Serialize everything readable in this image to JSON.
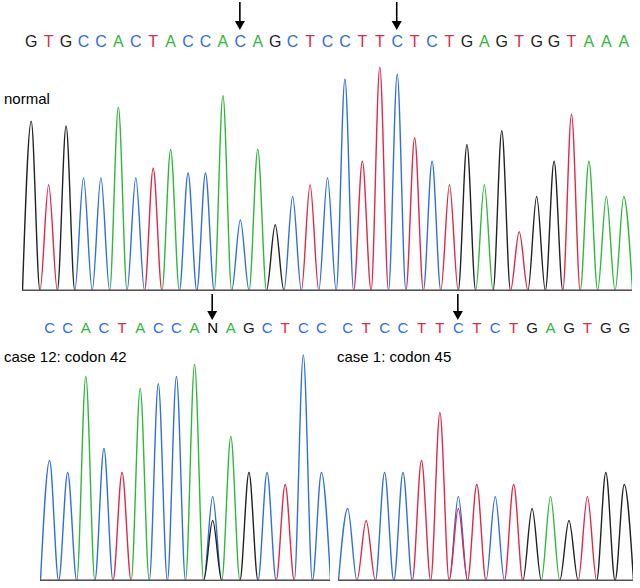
{
  "chart_data": [
    {
      "type": "line",
      "title": "normal",
      "sequence": "GTGCCACTACCACAGCTCCTTCTCTGAGTGGTAAA",
      "arrows": [
        12,
        21
      ],
      "x": [
        -0.5,
        0,
        0.5,
        1,
        1.5,
        2,
        2.5,
        3,
        3.5,
        4,
        4.5,
        5,
        5.5,
        6,
        6.5,
        7,
        7.5,
        8,
        8.5,
        9,
        9.5,
        10,
        10.5,
        11,
        11.5,
        12,
        12.5,
        13,
        13.5,
        14,
        14.5,
        15,
        15.5,
        16,
        16.5,
        17,
        17.5,
        18,
        18.5,
        19,
        19.5,
        20,
        20.5,
        21,
        21.5,
        22,
        22.5,
        23,
        23.5,
        24,
        24.5,
        25,
        25.5,
        26,
        26.5,
        27,
        27.5,
        28,
        28.5,
        29,
        29.5,
        30,
        30.5,
        31,
        31.5,
        32,
        32.5,
        33,
        33.5,
        34,
        34.5
      ],
      "xlim": [
        -0.5,
        34.5
      ],
      "ylim": [
        0,
        100
      ],
      "tick_labels": false,
      "series": [
        {
          "base": "A",
          "color": "#2fb83a",
          "values": [
            0,
            0,
            0,
            0,
            0,
            0,
            0,
            0,
            0,
            0,
            0,
            78,
            0,
            0,
            0,
            0,
            0,
            60,
            0,
            0,
            0,
            0,
            0,
            83,
            0,
            0,
            0,
            60,
            0,
            0,
            0,
            0,
            0,
            0,
            0,
            0,
            0,
            0,
            0,
            0,
            0,
            0,
            0,
            0,
            0,
            0,
            0,
            0,
            0,
            0,
            0,
            0,
            0,
            45,
            0,
            0,
            0,
            0,
            0,
            0,
            0,
            0,
            0,
            0,
            0,
            55,
            0,
            40,
            0,
            40,
            0
          ]
        },
        {
          "base": "C",
          "color": "#2f6fe0",
          "values": [
            0,
            0,
            0,
            0,
            0,
            0,
            0,
            48,
            0,
            48,
            0,
            0,
            0,
            48,
            0,
            0,
            0,
            0,
            0,
            50,
            0,
            50,
            0,
            0,
            0,
            30,
            0,
            0,
            0,
            0,
            0,
            40,
            0,
            0,
            0,
            48,
            0,
            90,
            0,
            0,
            0,
            0,
            0,
            92,
            0,
            0,
            0,
            55,
            0,
            0,
            0,
            0,
            0,
            0,
            0,
            0,
            0,
            0,
            0,
            0,
            0,
            0,
            0,
            0,
            0,
            0,
            0,
            0,
            0,
            0,
            0
          ]
        },
        {
          "base": "G",
          "color": "#222222",
          "values": [
            0,
            72,
            0,
            0,
            0,
            70,
            0,
            0,
            0,
            0,
            0,
            0,
            0,
            0,
            0,
            0,
            0,
            0,
            0,
            0,
            0,
            0,
            0,
            0,
            0,
            0,
            0,
            0,
            0,
            28,
            0,
            0,
            0,
            0,
            0,
            0,
            0,
            0,
            0,
            0,
            0,
            0,
            0,
            0,
            0,
            0,
            0,
            0,
            0,
            0,
            0,
            62,
            0,
            0,
            0,
            68,
            0,
            0,
            0,
            40,
            0,
            55,
            0,
            0,
            0,
            0,
            0,
            0,
            0,
            0,
            0
          ]
        },
        {
          "base": "T",
          "color": "#e02848",
          "values": [
            0,
            0,
            0,
            45,
            0,
            0,
            0,
            0,
            0,
            0,
            0,
            0,
            0,
            0,
            0,
            52,
            0,
            0,
            0,
            0,
            0,
            0,
            0,
            0,
            0,
            0,
            0,
            0,
            0,
            0,
            0,
            0,
            0,
            45,
            0,
            0,
            0,
            0,
            0,
            55,
            0,
            95,
            0,
            0,
            0,
            65,
            0,
            0,
            0,
            45,
            0,
            0,
            0,
            0,
            0,
            0,
            0,
            25,
            0,
            0,
            0,
            0,
            0,
            75,
            0,
            0,
            0,
            0,
            0,
            0,
            0
          ]
        }
      ]
    },
    {
      "type": "line",
      "title": "case 12: codon 42",
      "sequence": "CCACTACCANAGCTCC",
      "arrows": [
        9
      ],
      "x": [
        -0.5,
        0,
        0.5,
        1,
        1.5,
        2,
        2.5,
        3,
        3.5,
        4,
        4.5,
        5,
        5.5,
        6,
        6.5,
        7,
        7.5,
        8,
        8.5,
        9,
        9.5,
        10,
        10.5,
        11,
        11.5,
        12,
        12.5,
        13,
        13.5,
        14,
        14.5,
        15,
        15.5
      ],
      "xlim": [
        -0.5,
        15.5
      ],
      "ylim": [
        0,
        100
      ],
      "tick_labels": false,
      "series": [
        {
          "base": "A",
          "color": "#2fb83a",
          "values": [
            0,
            0,
            0,
            0,
            0,
            85,
            0,
            0,
            0,
            0,
            0,
            80,
            0,
            0,
            0,
            0,
            0,
            90,
            0,
            0,
            0,
            60,
            0,
            0,
            0,
            0,
            0,
            0,
            0,
            0,
            0,
            0,
            0
          ]
        },
        {
          "base": "C",
          "color": "#2f6fe0",
          "values": [
            0,
            50,
            0,
            45,
            0,
            0,
            0,
            55,
            0,
            0,
            0,
            0,
            0,
            82,
            0,
            85,
            0,
            0,
            0,
            35,
            0,
            0,
            0,
            0,
            0,
            45,
            0,
            0,
            0,
            94,
            0,
            45,
            0
          ]
        },
        {
          "base": "G",
          "color": "#222222",
          "values": [
            0,
            0,
            0,
            0,
            0,
            0,
            0,
            0,
            0,
            0,
            0,
            0,
            0,
            0,
            0,
            0,
            0,
            0,
            0,
            25,
            0,
            0,
            0,
            45,
            0,
            0,
            0,
            0,
            0,
            0,
            0,
            0,
            0
          ]
        },
        {
          "base": "T",
          "color": "#e02848",
          "values": [
            0,
            0,
            0,
            0,
            0,
            0,
            0,
            0,
            0,
            45,
            0,
            0,
            0,
            0,
            0,
            0,
            0,
            0,
            0,
            0,
            0,
            0,
            0,
            0,
            0,
            0,
            0,
            40,
            0,
            0,
            0,
            0,
            0
          ]
        }
      ]
    },
    {
      "type": "line",
      "title": "case 1: codon 45",
      "sequence": "CTCCTTCTCTGAGTGG",
      "arrows": [
        6
      ],
      "x": [
        -0.5,
        0,
        0.5,
        1,
        1.5,
        2,
        2.5,
        3,
        3.5,
        4,
        4.5,
        5,
        5.5,
        6,
        6.5,
        7,
        7.5,
        8,
        8.5,
        9,
        9.5,
        10,
        10.5,
        11,
        11.5,
        12,
        12.5,
        13,
        13.5,
        14,
        14.5,
        15,
        15.5
      ],
      "xlim": [
        -0.5,
        15.5
      ],
      "ylim": [
        0,
        100
      ],
      "tick_labels": false,
      "series": [
        {
          "base": "A",
          "color": "#2fb83a",
          "values": [
            0,
            0,
            0,
            0,
            0,
            0,
            0,
            0,
            0,
            0,
            0,
            0,
            0,
            0,
            0,
            0,
            0,
            0,
            0,
            0,
            0,
            0,
            0,
            35,
            0,
            0,
            0,
            0,
            0,
            0,
            0,
            0,
            0
          ]
        },
        {
          "base": "C",
          "color": "#2f6fe0",
          "values": [
            0,
            30,
            0,
            0,
            0,
            45,
            0,
            45,
            0,
            0,
            0,
            0,
            0,
            35,
            0,
            0,
            0,
            35,
            0,
            0,
            0,
            0,
            0,
            0,
            0,
            0,
            0,
            0,
            0,
            0,
            0,
            0,
            0
          ]
        },
        {
          "base": "G",
          "color": "#222222",
          "values": [
            0,
            0,
            0,
            0,
            0,
            0,
            0,
            0,
            0,
            0,
            0,
            0,
            0,
            0,
            0,
            0,
            0,
            0,
            0,
            0,
            0,
            30,
            0,
            0,
            0,
            25,
            0,
            0,
            0,
            45,
            0,
            40,
            0
          ]
        },
        {
          "base": "T",
          "color": "#e02848",
          "values": [
            0,
            0,
            0,
            25,
            0,
            0,
            0,
            0,
            0,
            50,
            0,
            70,
            0,
            30,
            0,
            40,
            0,
            0,
            0,
            40,
            0,
            0,
            0,
            0,
            0,
            0,
            0,
            35,
            0,
            0,
            0,
            0,
            0
          ]
        }
      ]
    }
  ]
}
